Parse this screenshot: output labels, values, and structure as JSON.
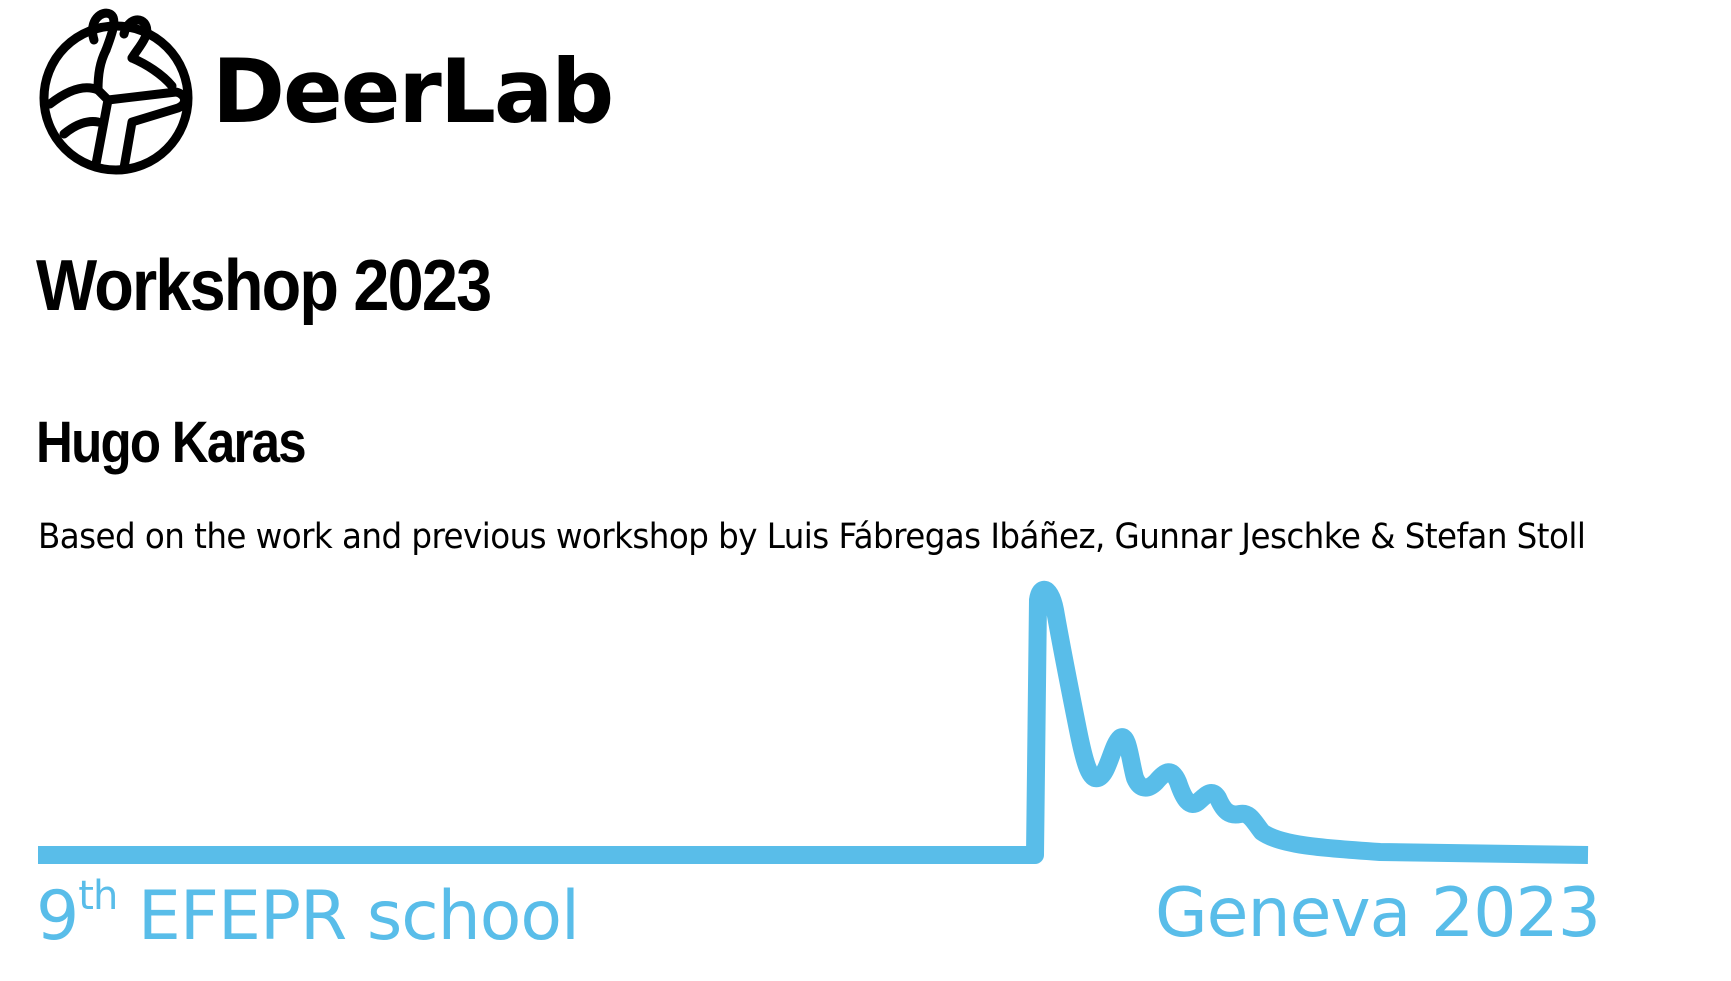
{
  "brand": {
    "name": "DeerLab",
    "logo_icon": "deerlab-logo-icon"
  },
  "slide": {
    "title": "Workshop 2023",
    "author": "Hugo Karas",
    "credits": "Based on the work and previous workshop by Luis Fábregas Ibáñez, Gunnar Jeschke & Stefan Stoll"
  },
  "footer": {
    "school_prefix": "9",
    "school_suffix": "th",
    "school_rest": " EFEPR school",
    "location": "Geneva 2023"
  },
  "colors": {
    "accent": "#59bde9",
    "text": "#000000",
    "background": "#ffffff"
  }
}
